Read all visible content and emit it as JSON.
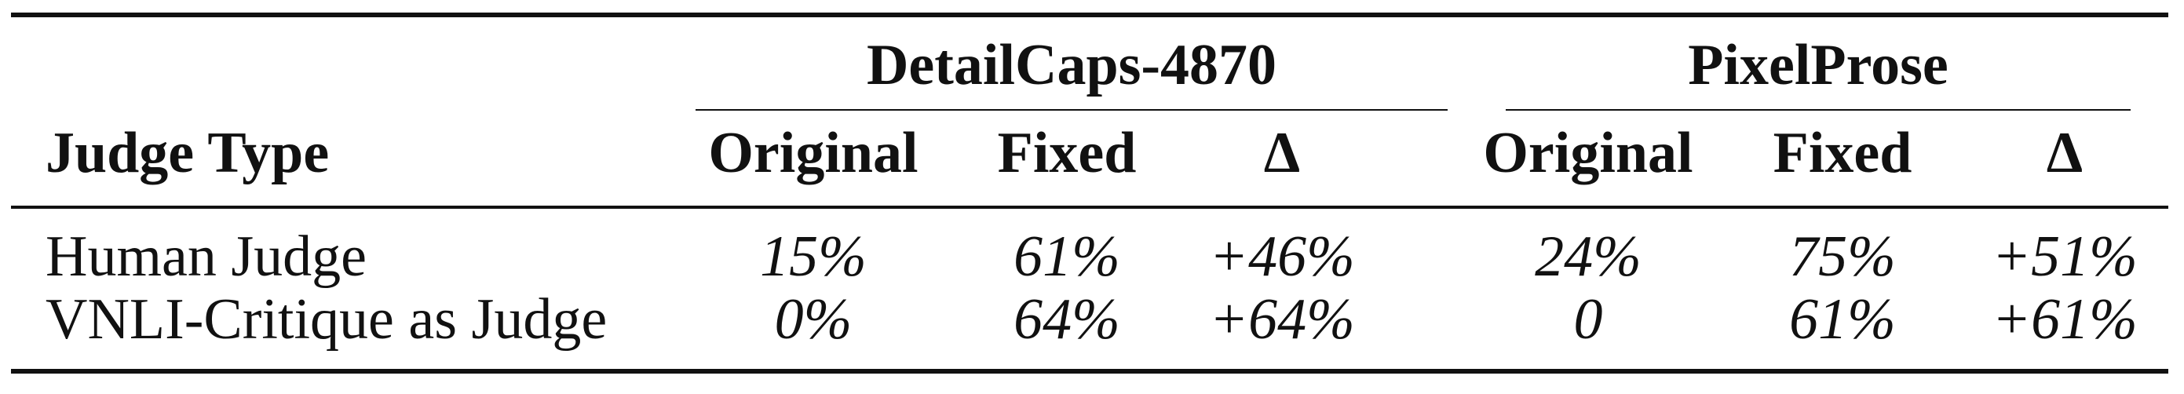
{
  "table": {
    "groups": [
      "DetailCaps-4870",
      "PixelProse"
    ],
    "stub_header": "Judge Type",
    "column_headers": [
      "Original",
      "Fixed",
      "Δ",
      "Original",
      "Fixed",
      "Δ"
    ],
    "rows": [
      {
        "label": "Human Judge",
        "values": [
          "15%",
          "61%",
          "+46%",
          "24%",
          "75%",
          "+51%"
        ]
      },
      {
        "label": "VNLI-Critique as Judge",
        "values": [
          "0%",
          "64%",
          "+64%",
          "0",
          "61%",
          "+61%"
        ]
      }
    ]
  }
}
